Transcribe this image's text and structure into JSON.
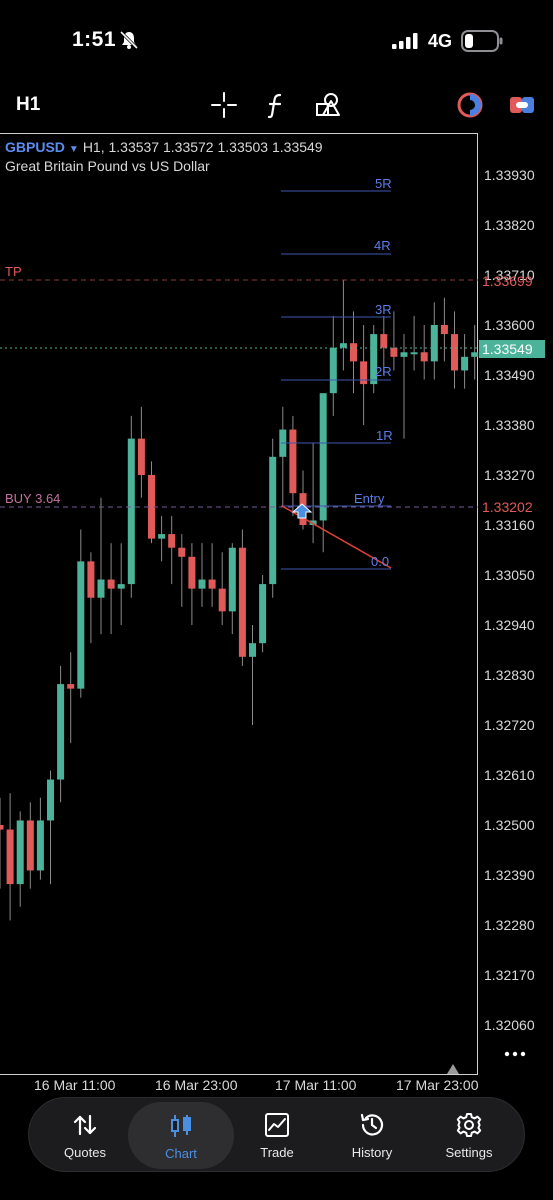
{
  "status_bar": {
    "time": "1:51",
    "network": "4G"
  },
  "toolbar": {
    "timeframe": "H1",
    "icons": [
      "crosshair-icon",
      "indicator-f-icon",
      "objects-icon",
      "chart-color-icon",
      "one-click-trading-icon"
    ]
  },
  "symbol": {
    "name": "GBPUSD",
    "ohlc_text": "H1, 1.33537 1.33572 1.33503 1.33549",
    "description": "Great Britain Pound vs US Dollar"
  },
  "price_axis": [
    "1.33930",
    "1.33820",
    "1.33710",
    "1.33600",
    "1.33490",
    "1.33380",
    "1.33270",
    "1.33160",
    "1.33050",
    "1.32940",
    "1.32830",
    "1.32720",
    "1.32610",
    "1.32500",
    "1.32390",
    "1.32280",
    "1.32170",
    "1.32060"
  ],
  "time_axis": [
    "16 Mar 11:00",
    "16 Mar 23:00",
    "17 Mar 11:00",
    "17 Mar 23:00"
  ],
  "levels": {
    "tp_label": "TP",
    "tp_price": "1.33699",
    "buy_label": "BUY 3.64",
    "buy_price": "1.33202",
    "current_price": "1.33549",
    "entry_label": "Entry",
    "r_labels": [
      "5R",
      "4R",
      "3R",
      "2R",
      "1R",
      "0.0"
    ]
  },
  "colors": {
    "bull": "#4bb39a",
    "bear": "#e05a5a",
    "accent": "#4a90e2",
    "r_line": "#3f57b0"
  },
  "nav": {
    "items": [
      {
        "label": "Quotes",
        "icon": "quotes-arrows-icon"
      },
      {
        "label": "Chart",
        "icon": "chart-candles-icon"
      },
      {
        "label": "Trade",
        "icon": "trade-chart-icon"
      },
      {
        "label": "History",
        "icon": "history-clock-icon"
      },
      {
        "label": "Settings",
        "icon": "settings-gear-icon"
      }
    ],
    "active": "Chart"
  },
  "chart_data": {
    "type": "candlestick",
    "symbol": "GBPUSD",
    "timeframe": "H1",
    "ylim": [
      1.32,
      1.34
    ],
    "candles": [
      {
        "o": 1.325,
        "h": 1.3256,
        "l": 1.3236,
        "c": 1.3249
      },
      {
        "o": 1.3249,
        "h": 1.3257,
        "l": 1.3229,
        "c": 1.3237
      },
      {
        "o": 1.3237,
        "h": 1.3253,
        "l": 1.3232,
        "c": 1.3251
      },
      {
        "o": 1.3251,
        "h": 1.3255,
        "l": 1.3236,
        "c": 1.324
      },
      {
        "o": 1.324,
        "h": 1.3256,
        "l": 1.3238,
        "c": 1.3251
      },
      {
        "o": 1.3251,
        "h": 1.3262,
        "l": 1.3237,
        "c": 1.326
      },
      {
        "o": 1.326,
        "h": 1.3285,
        "l": 1.3255,
        "c": 1.3281
      },
      {
        "o": 1.3281,
        "h": 1.3288,
        "l": 1.3268,
        "c": 1.328
      },
      {
        "o": 1.328,
        "h": 1.3315,
        "l": 1.3278,
        "c": 1.3308
      },
      {
        "o": 1.3308,
        "h": 1.331,
        "l": 1.329,
        "c": 1.33
      },
      {
        "o": 1.33,
        "h": 1.3322,
        "l": 1.3292,
        "c": 1.3304
      },
      {
        "o": 1.3304,
        "h": 1.3312,
        "l": 1.3292,
        "c": 1.3302
      },
      {
        "o": 1.3302,
        "h": 1.3312,
        "l": 1.3294,
        "c": 1.3303
      },
      {
        "o": 1.3303,
        "h": 1.334,
        "l": 1.33,
        "c": 1.3335
      },
      {
        "o": 1.3335,
        "h": 1.3342,
        "l": 1.3322,
        "c": 1.3327
      },
      {
        "o": 1.3327,
        "h": 1.333,
        "l": 1.3312,
        "c": 1.3313
      },
      {
        "o": 1.3313,
        "h": 1.3318,
        "l": 1.3308,
        "c": 1.3314
      },
      {
        "o": 1.3314,
        "h": 1.3318,
        "l": 1.3303,
        "c": 1.3311
      },
      {
        "o": 1.3311,
        "h": 1.3314,
        "l": 1.3298,
        "c": 1.3309
      },
      {
        "o": 1.3309,
        "h": 1.3312,
        "l": 1.3294,
        "c": 1.3302
      },
      {
        "o": 1.3302,
        "h": 1.3312,
        "l": 1.3298,
        "c": 1.3304
      },
      {
        "o": 1.3304,
        "h": 1.3312,
        "l": 1.3298,
        "c": 1.3302
      },
      {
        "o": 1.3302,
        "h": 1.331,
        "l": 1.3294,
        "c": 1.3297
      },
      {
        "o": 1.3297,
        "h": 1.3312,
        "l": 1.3292,
        "c": 1.3311
      },
      {
        "o": 1.3311,
        "h": 1.3315,
        "l": 1.3285,
        "c": 1.3287
      },
      {
        "o": 1.3287,
        "h": 1.3294,
        "l": 1.3272,
        "c": 1.329
      },
      {
        "o": 1.329,
        "h": 1.3305,
        "l": 1.3288,
        "c": 1.3303
      },
      {
        "o": 1.3303,
        "h": 1.3335,
        "l": 1.33,
        "c": 1.3331
      },
      {
        "o": 1.3331,
        "h": 1.3342,
        "l": 1.332,
        "c": 1.3337
      },
      {
        "o": 1.3337,
        "h": 1.334,
        "l": 1.3318,
        "c": 1.3323
      },
      {
        "o": 1.3323,
        "h": 1.3328,
        "l": 1.3315,
        "c": 1.3316
      },
      {
        "o": 1.3316,
        "h": 1.3334,
        "l": 1.3312,
        "c": 1.3317
      },
      {
        "o": 1.3317,
        "h": 1.3345,
        "l": 1.331,
        "c": 1.3345
      },
      {
        "o": 1.3345,
        "h": 1.3362,
        "l": 1.334,
        "c": 1.3355
      },
      {
        "o": 1.3355,
        "h": 1.337,
        "l": 1.335,
        "c": 1.3356
      },
      {
        "o": 1.3356,
        "h": 1.3363,
        "l": 1.3345,
        "c": 1.3352
      },
      {
        "o": 1.3352,
        "h": 1.336,
        "l": 1.3338,
        "c": 1.3347
      },
      {
        "o": 1.3347,
        "h": 1.336,
        "l": 1.3345,
        "c": 1.3358
      },
      {
        "o": 1.3358,
        "h": 1.3362,
        "l": 1.3349,
        "c": 1.3355
      },
      {
        "o": 1.3355,
        "h": 1.3363,
        "l": 1.335,
        "c": 1.3353
      },
      {
        "o": 1.3353,
        "h": 1.3358,
        "l": 1.3335,
        "c": 1.3354
      },
      {
        "o": 1.3354,
        "h": 1.3362,
        "l": 1.335,
        "c": 1.3354
      },
      {
        "o": 1.3354,
        "h": 1.336,
        "l": 1.3348,
        "c": 1.3352
      },
      {
        "o": 1.3352,
        "h": 1.3365,
        "l": 1.3348,
        "c": 1.336
      },
      {
        "o": 1.336,
        "h": 1.3366,
        "l": 1.3352,
        "c": 1.3358
      },
      {
        "o": 1.3358,
        "h": 1.3363,
        "l": 1.3346,
        "c": 1.335
      },
      {
        "o": 1.335,
        "h": 1.3358,
        "l": 1.3346,
        "c": 1.3353
      },
      {
        "o": 1.3353,
        "h": 1.336,
        "l": 1.3348,
        "c": 1.3354
      }
    ]
  }
}
